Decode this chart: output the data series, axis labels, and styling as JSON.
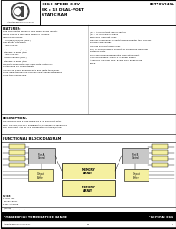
{
  "title_line1": "HIGH-SPEED 3.3V",
  "title_line2": "8K x 18 DUAL-PORT",
  "title_line3": "STATIC RAM",
  "part_number": "IDT70V24SL",
  "features_header": "FEATURES:",
  "features": [
    "True Dual-Ported memory cells which allow simulta-",
    "neous access of the same memory location.",
    "High-speed access:",
    "  - 3.5/4.5/6/8/10/12 (Max.)",
    "Low-power operation:",
    "  - IDT70V24S:",
    "  Active: 200mW (typ.)",
    "  Standby: 2.5mW (typ.)",
    "  - IDT70V24SL:",
    "  Active: 250mW (typ.)",
    "  Standby: 0.5mW (typ.)",
    "Separate upper-byte and lower-byte control for",
    "multiplexed bus compatibility.",
    "IDT70V24S easily expands data bus width to 32/36-or",
    "more using two devices and can select when expanding",
    "more than one device."
  ],
  "right_features": [
    "/G = +4 for output flag or Master",
    "/G = +1 for input or Slave",
    "Busy and Interrupt Flags",
    "Devices are capable of withstanding greater than 200V of",
    "electrostatic charge.",
    "On-chip port protection logic.",
    "Full on-chip hardware support of semaphore signaling",
    "between ports.",
    "Fully asynchronous operation from either port.",
    "VTTL compatible, single 3.3V power supply.",
    "Available in 64-pin PDIP, 84-pin PLCC and 100-pin",
    "TQFP."
  ],
  "desc_header": "DESCRIPTION:",
  "description": [
    "The IDT70V24S is a high-speed 8K x 18 Dual-Port Static",
    "Ram. The IDT70V24S is designed to be used as a standalone",
    "dual Dual-Port RAM or as a combination MASTER/SLAVE."
  ],
  "block_diagram_header": "FUNCTIONAL BLOCK DIAGRAM",
  "footer_left": "COMMERCIAL TEMPERATURE RANGE",
  "footer_right": "CAUTION: ESD",
  "bg_color": "#ffffff",
  "border_color": "#000000",
  "block_color": "#f5f0a0",
  "gray_block": "#c8c8c8",
  "footer_bar_color": "#000000",
  "logo_text": "Integrated Device Technology, Inc."
}
